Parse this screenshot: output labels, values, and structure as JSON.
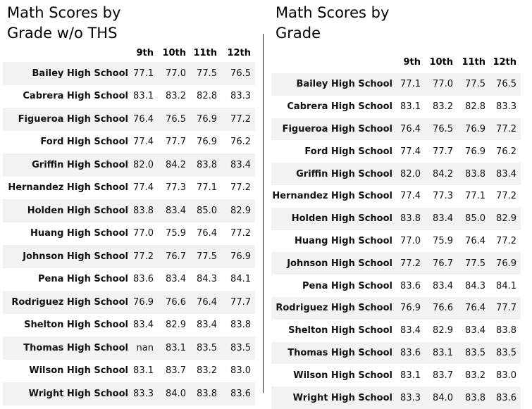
{
  "columns": [
    "9th",
    "10th",
    "11th",
    "12th"
  ],
  "left_panel": {
    "title": "Math Scores by\nGrade w/o THS",
    "rows": [
      {
        "school": "Bailey High School",
        "scores": [
          "77.1",
          "77.0",
          "77.5",
          "76.5"
        ]
      },
      {
        "school": "Cabrera High School",
        "scores": [
          "83.1",
          "83.2",
          "82.8",
          "83.3"
        ]
      },
      {
        "school": "Figueroa High School",
        "scores": [
          "76.4",
          "76.5",
          "76.9",
          "77.2"
        ]
      },
      {
        "school": "Ford High School",
        "scores": [
          "77.4",
          "77.7",
          "76.9",
          "76.2"
        ]
      },
      {
        "school": "Griffin High School",
        "scores": [
          "82.0",
          "84.2",
          "83.8",
          "83.4"
        ]
      },
      {
        "school": "Hernandez High School",
        "scores": [
          "77.4",
          "77.3",
          "77.1",
          "77.2"
        ]
      },
      {
        "school": "Holden High School",
        "scores": [
          "83.8",
          "83.4",
          "85.0",
          "82.9"
        ]
      },
      {
        "school": "Huang High School",
        "scores": [
          "77.0",
          "75.9",
          "76.4",
          "77.2"
        ]
      },
      {
        "school": "Johnson High School",
        "scores": [
          "77.2",
          "76.7",
          "77.5",
          "76.9"
        ]
      },
      {
        "school": "Pena High School",
        "scores": [
          "83.6",
          "83.4",
          "84.3",
          "84.1"
        ]
      },
      {
        "school": "Rodriguez High School",
        "scores": [
          "76.9",
          "76.6",
          "76.4",
          "77.7"
        ]
      },
      {
        "school": "Shelton High School",
        "scores": [
          "83.4",
          "82.9",
          "83.4",
          "83.8"
        ]
      },
      {
        "school": "Thomas High School",
        "scores": [
          "nan",
          "83.1",
          "83.5",
          "83.5"
        ]
      },
      {
        "school": "Wilson High School",
        "scores": [
          "83.1",
          "83.7",
          "83.2",
          "83.0"
        ]
      },
      {
        "school": "Wright High School",
        "scores": [
          "83.3",
          "84.0",
          "83.8",
          "83.6"
        ]
      }
    ]
  },
  "right_panel": {
    "title": "Math Scores by\nGrade",
    "rows": [
      {
        "school": "Bailey High School",
        "scores": [
          "77.1",
          "77.0",
          "77.5",
          "76.5"
        ]
      },
      {
        "school": "Cabrera High School",
        "scores": [
          "83.1",
          "83.2",
          "82.8",
          "83.3"
        ]
      },
      {
        "school": "Figueroa High School",
        "scores": [
          "76.4",
          "76.5",
          "76.9",
          "77.2"
        ]
      },
      {
        "school": "Ford High School",
        "scores": [
          "77.4",
          "77.7",
          "76.9",
          "76.2"
        ]
      },
      {
        "school": "Griffin High School",
        "scores": [
          "82.0",
          "84.2",
          "83.8",
          "83.4"
        ]
      },
      {
        "school": "Hernandez High School",
        "scores": [
          "77.4",
          "77.3",
          "77.1",
          "77.2"
        ]
      },
      {
        "school": "Holden High School",
        "scores": [
          "83.8",
          "83.4",
          "85.0",
          "82.9"
        ]
      },
      {
        "school": "Huang High School",
        "scores": [
          "77.0",
          "75.9",
          "76.4",
          "77.2"
        ]
      },
      {
        "school": "Johnson High School",
        "scores": [
          "77.2",
          "76.7",
          "77.5",
          "76.9"
        ]
      },
      {
        "school": "Pena High School",
        "scores": [
          "83.6",
          "83.4",
          "84.3",
          "84.1"
        ]
      },
      {
        "school": "Rodriguez High School",
        "scores": [
          "76.9",
          "76.6",
          "76.4",
          "77.7"
        ]
      },
      {
        "school": "Shelton High School",
        "scores": [
          "83.4",
          "82.9",
          "83.4",
          "83.8"
        ]
      },
      {
        "school": "Thomas High School",
        "scores": [
          "83.6",
          "83.1",
          "83.5",
          "83.5"
        ]
      },
      {
        "school": "Wilson High School",
        "scores": [
          "83.1",
          "83.7",
          "83.2",
          "83.0"
        ]
      },
      {
        "school": "Wright High School",
        "scores": [
          "83.3",
          "84.0",
          "83.8",
          "83.6"
        ]
      }
    ]
  },
  "colors": {
    "row_stripe": "#f2f2f2",
    "divider": "#222222"
  }
}
